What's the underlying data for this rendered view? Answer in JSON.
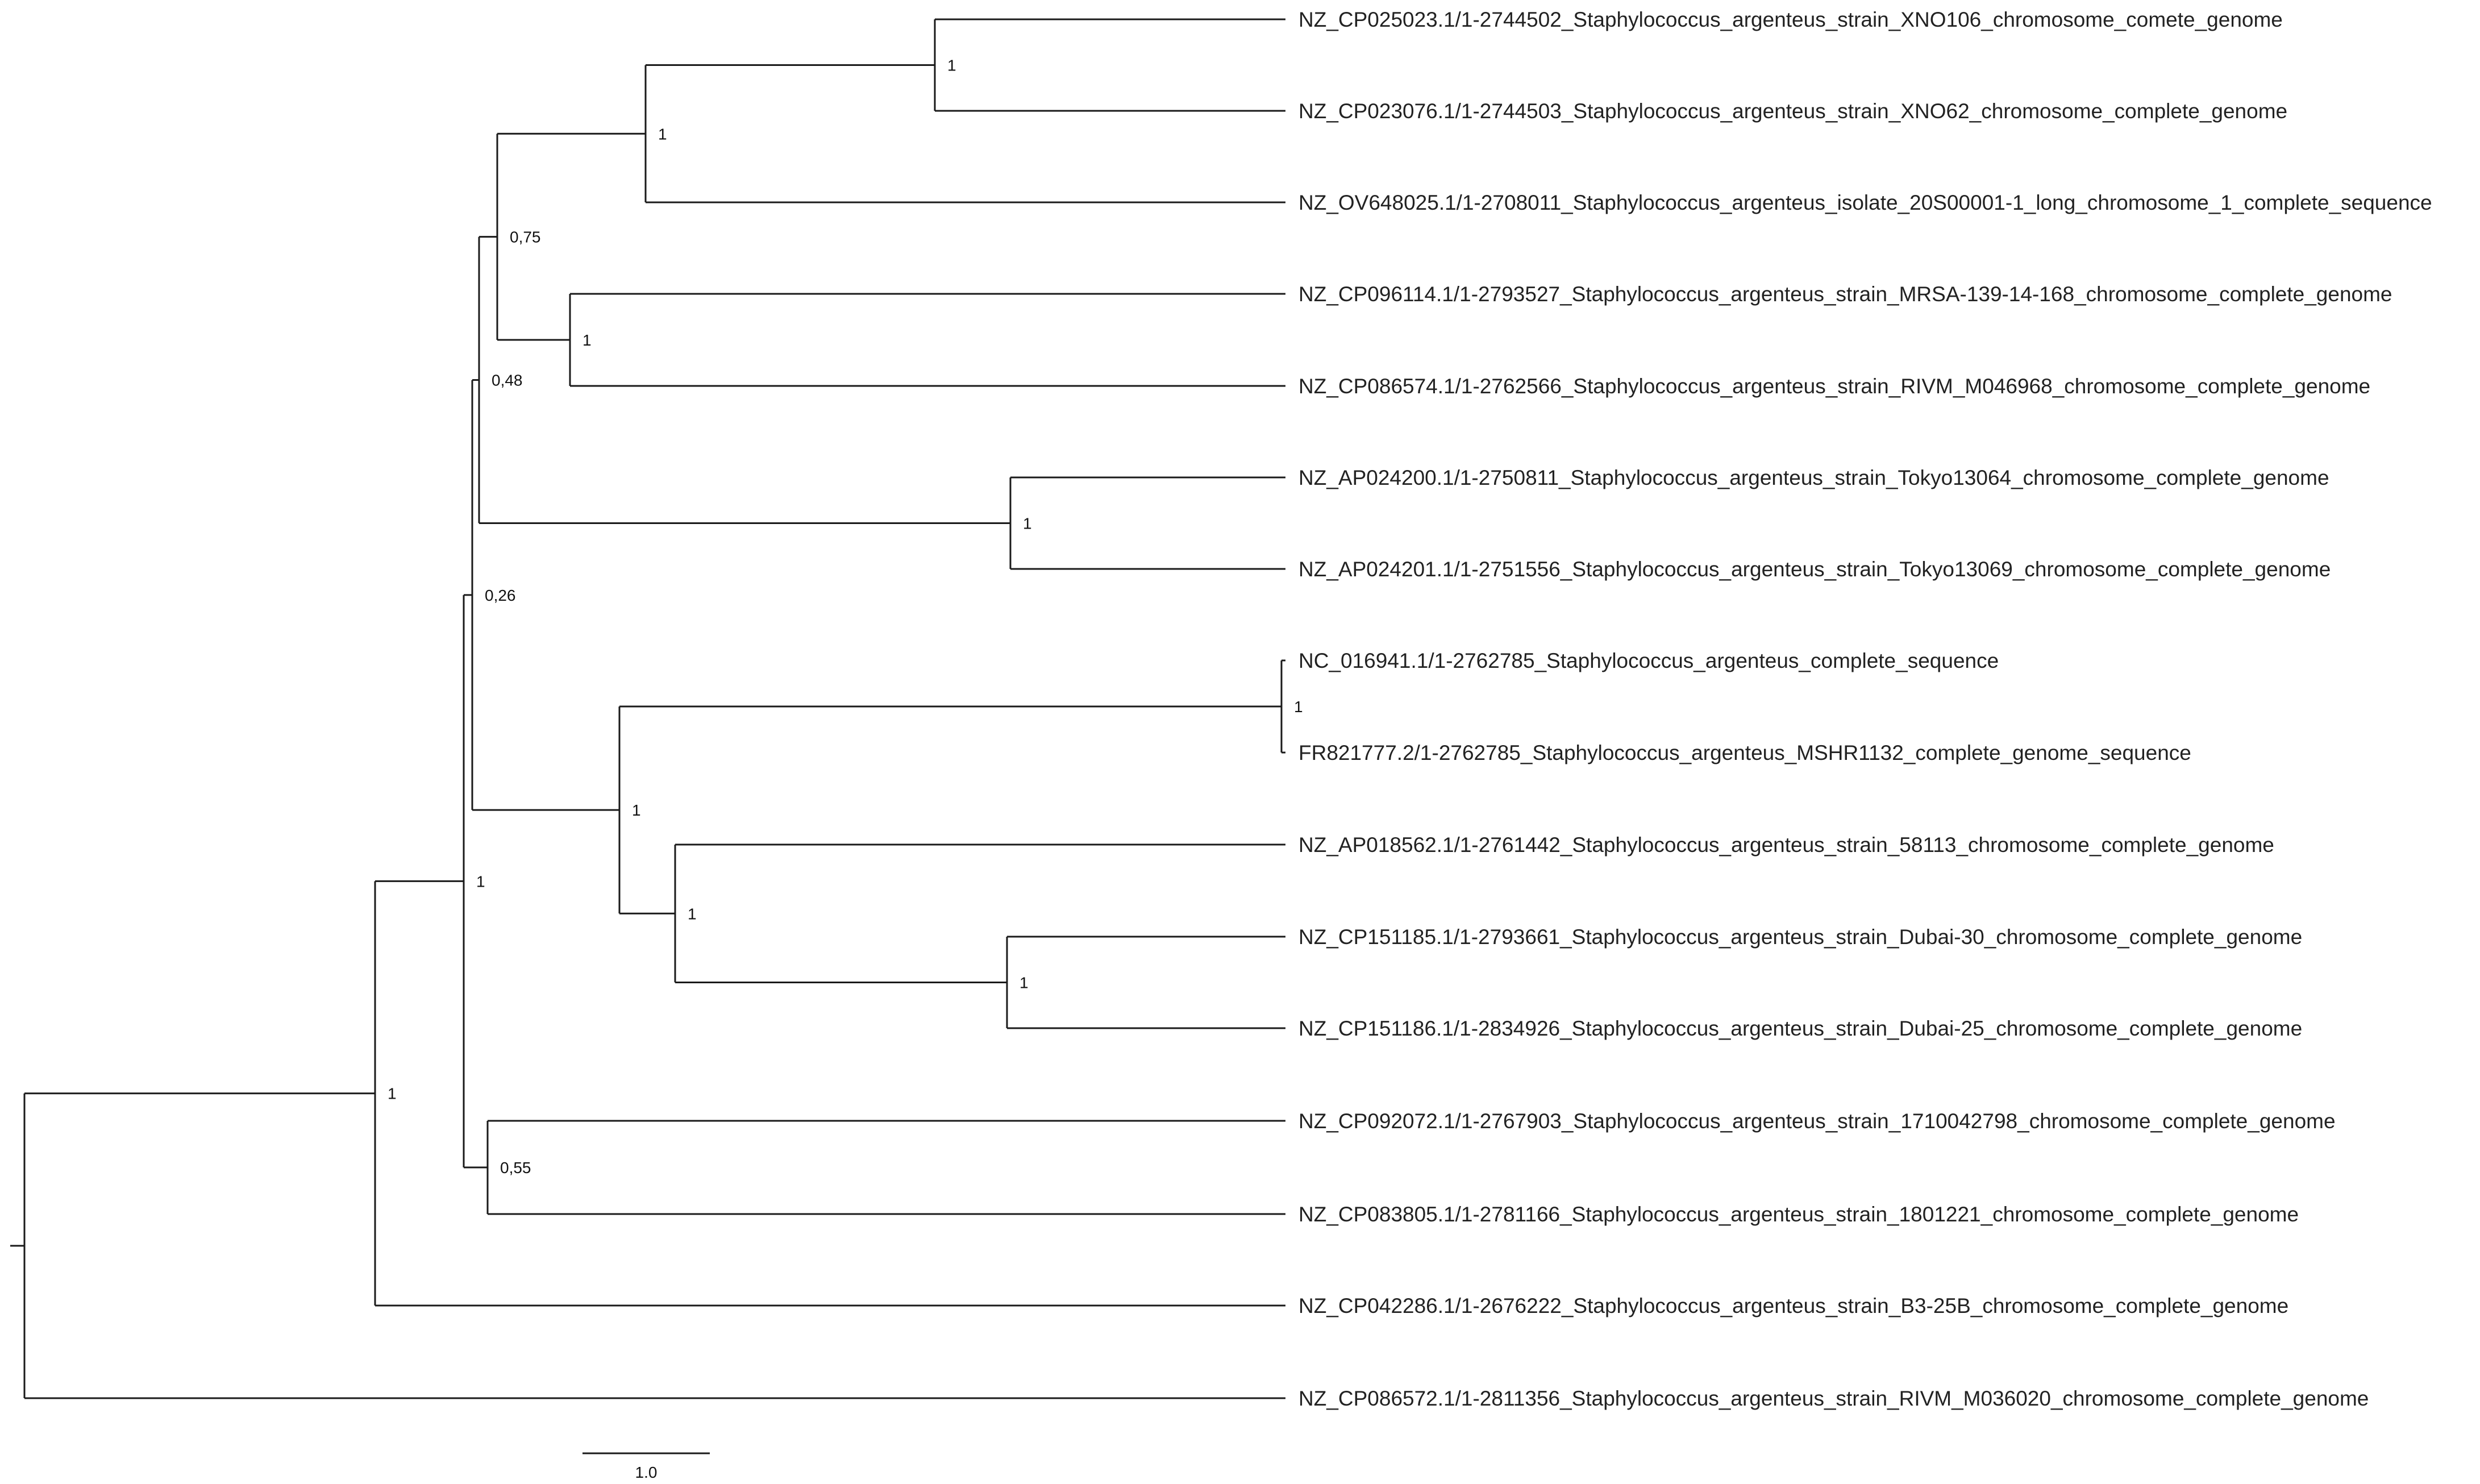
{
  "tree": {
    "tips": [
      {
        "id": "t1",
        "label": "NZ_CP025023.1/1-2744502_Staphylococcus_argenteus_strain_XNO106_chromosome_comete_genome"
      },
      {
        "id": "t2",
        "label": "NZ_CP023076.1/1-2744503_Staphylococcus_argenteus_strain_XNO62_chromosome_complete_genome"
      },
      {
        "id": "t3",
        "label": "NZ_OV648025.1/1-2708011_Staphylococcus_argenteus_isolate_20S00001-1_long_chromosome_1_complete_sequence"
      },
      {
        "id": "t4",
        "label": "NZ_CP096114.1/1-2793527_Staphylococcus_argenteus_strain_MRSA-139-14-168_chromosome_complete_genome"
      },
      {
        "id": "t5",
        "label": "NZ_CP086574.1/1-2762566_Staphylococcus_argenteus_strain_RIVM_M046968_chromosome_complete_genome"
      },
      {
        "id": "t6",
        "label": "NZ_AP024200.1/1-2750811_Staphylococcus_argenteus_strain_Tokyo13064_chromosome_complete_genome"
      },
      {
        "id": "t7",
        "label": "NZ_AP024201.1/1-2751556_Staphylococcus_argenteus_strain_Tokyo13069_chromosome_complete_genome"
      },
      {
        "id": "t8",
        "label": "NC_016941.1/1-2762785_Staphylococcus_argenteus_complete_sequence",
        "highlight": true
      },
      {
        "id": "t9",
        "label": "FR821777.2/1-2762785_Staphylococcus_argenteus_MSHR1132_complete_genome_sequence"
      },
      {
        "id": "t10",
        "label": "NZ_AP018562.1/1-2761442_Staphylococcus_argenteus_strain_58113_chromosome_complete_genome"
      },
      {
        "id": "t11",
        "label": "NZ_CP151185.1/1-2793661_Staphylococcus_argenteus_strain_Dubai-30_chromosome_complete_genome"
      },
      {
        "id": "t12",
        "label": "NZ_CP151186.1/1-2834926_Staphylococcus_argenteus_strain_Dubai-25_chromosome_complete_genome"
      },
      {
        "id": "t13",
        "label": "NZ_CP092072.1/1-2767903_Staphylococcus_argenteus_strain_1710042798_chromosome_complete_genome"
      },
      {
        "id": "t14",
        "label": "NZ_CP083805.1/1-2781166_Staphylococcus_argenteus_strain_1801221_chromosome_complete_genome"
      },
      {
        "id": "t15",
        "label": "NZ_CP042286.1/1-2676222_Staphylococcus_argenteus_strain_B3-25B_chromosome_complete_genome"
      },
      {
        "id": "t16",
        "label": "NZ_CP086572.1/1-2811356_Staphylococcus_argenteus_strain_RIVM_M036020_chromosome_complete_genome"
      }
    ],
    "internal_nodes": [
      {
        "id": "n_t1_t2",
        "children": [
          "t1",
          "t2"
        ],
        "support": "1"
      },
      {
        "id": "n_t123",
        "children": [
          "n_t1_t2",
          "t3"
        ],
        "support": "1"
      },
      {
        "id": "n_t4_t5",
        "children": [
          "t4",
          "t5"
        ],
        "support": "1"
      },
      {
        "id": "n_t1to5",
        "children": [
          "n_t123",
          "n_t4_t5"
        ],
        "support": "0,75"
      },
      {
        "id": "n_t6_t7",
        "children": [
          "t6",
          "t7"
        ],
        "support": "1"
      },
      {
        "id": "n_t1to7",
        "children": [
          "n_t1to5",
          "n_t6_t7"
        ],
        "support": "0,48"
      },
      {
        "id": "n_t8_t9",
        "children": [
          "t8",
          "t9"
        ],
        "support": "1"
      },
      {
        "id": "n_t11_t12",
        "children": [
          "t11",
          "t12"
        ],
        "support": "1"
      },
      {
        "id": "n_t10to12",
        "children": [
          "t10",
          "n_t11_t12"
        ],
        "support": "1"
      },
      {
        "id": "n_t8to12",
        "children": [
          "n_t8_t9",
          "n_t10to12"
        ],
        "support": "1"
      },
      {
        "id": "n_t1to12",
        "children": [
          "n_t1to7",
          "n_t8to12"
        ],
        "support": "0,26"
      },
      {
        "id": "n_t13_t14",
        "children": [
          "t13",
          "t14"
        ],
        "support": "0,55"
      },
      {
        "id": "n_t1to14",
        "children": [
          "n_t1to12",
          "n_t13_t14"
        ],
        "support": "1"
      },
      {
        "id": "n_t1to15",
        "children": [
          "n_t1to14",
          "t15"
        ],
        "support": "1"
      },
      {
        "id": "root",
        "children": [
          "n_t1to15",
          "t16"
        ],
        "support": ""
      }
    ],
    "scale_bar": {
      "label": "1.0"
    },
    "colors": {
      "branch": "#1a1a1a",
      "label": "#222222",
      "highlight": "#e8202a"
    }
  }
}
